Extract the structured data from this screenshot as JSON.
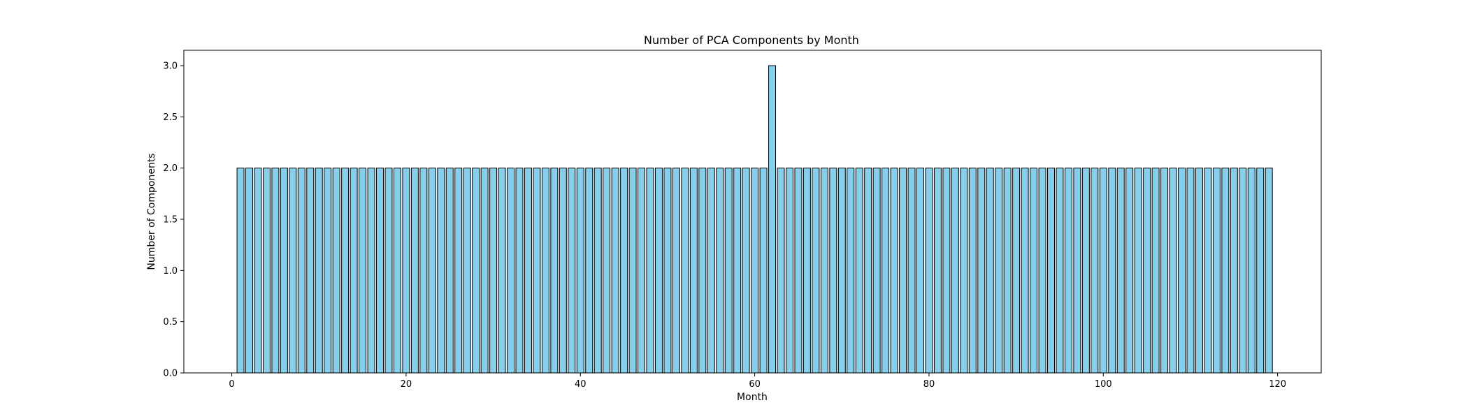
{
  "chart_data": {
    "type": "bar",
    "title": "Number of PCA Components by Month",
    "xlabel": "Month",
    "ylabel": "Number of Components",
    "x_start": 1,
    "values": [
      2,
      2,
      2,
      2,
      2,
      2,
      2,
      2,
      2,
      2,
      2,
      2,
      2,
      2,
      2,
      2,
      2,
      2,
      2,
      2,
      2,
      2,
      2,
      2,
      2,
      2,
      2,
      2,
      2,
      2,
      2,
      2,
      2,
      2,
      2,
      2,
      2,
      2,
      2,
      2,
      2,
      2,
      2,
      2,
      2,
      2,
      2,
      2,
      2,
      2,
      2,
      2,
      2,
      2,
      2,
      2,
      2,
      2,
      2,
      2,
      2,
      3,
      2,
      2,
      2,
      2,
      2,
      2,
      2,
      2,
      2,
      2,
      2,
      2,
      2,
      2,
      2,
      2,
      2,
      2,
      2,
      2,
      2,
      2,
      2,
      2,
      2,
      2,
      2,
      2,
      2,
      2,
      2,
      2,
      2,
      2,
      2,
      2,
      2,
      2,
      2,
      2,
      2,
      2,
      2,
      2,
      2,
      2,
      2,
      2,
      2,
      2,
      2,
      2,
      2,
      2,
      2,
      2,
      2
    ],
    "xlim": [
      -5.5,
      125
    ],
    "ylim": [
      0,
      3.15
    ],
    "x_ticks": [
      0,
      20,
      40,
      60,
      80,
      100,
      120
    ],
    "y_ticks": [
      0.0,
      0.5,
      1.0,
      1.5,
      2.0,
      2.5,
      3.0
    ],
    "x_tick_labels": [
      "0",
      "20",
      "40",
      "60",
      "80",
      "100",
      "120"
    ],
    "y_tick_labels": [
      "0.0",
      "0.5",
      "1.0",
      "1.5",
      "2.0",
      "2.5",
      "3.0"
    ],
    "grid": false,
    "colors": {
      "bar_fill": "#87ceeb",
      "bar_edge": "#000000"
    }
  }
}
